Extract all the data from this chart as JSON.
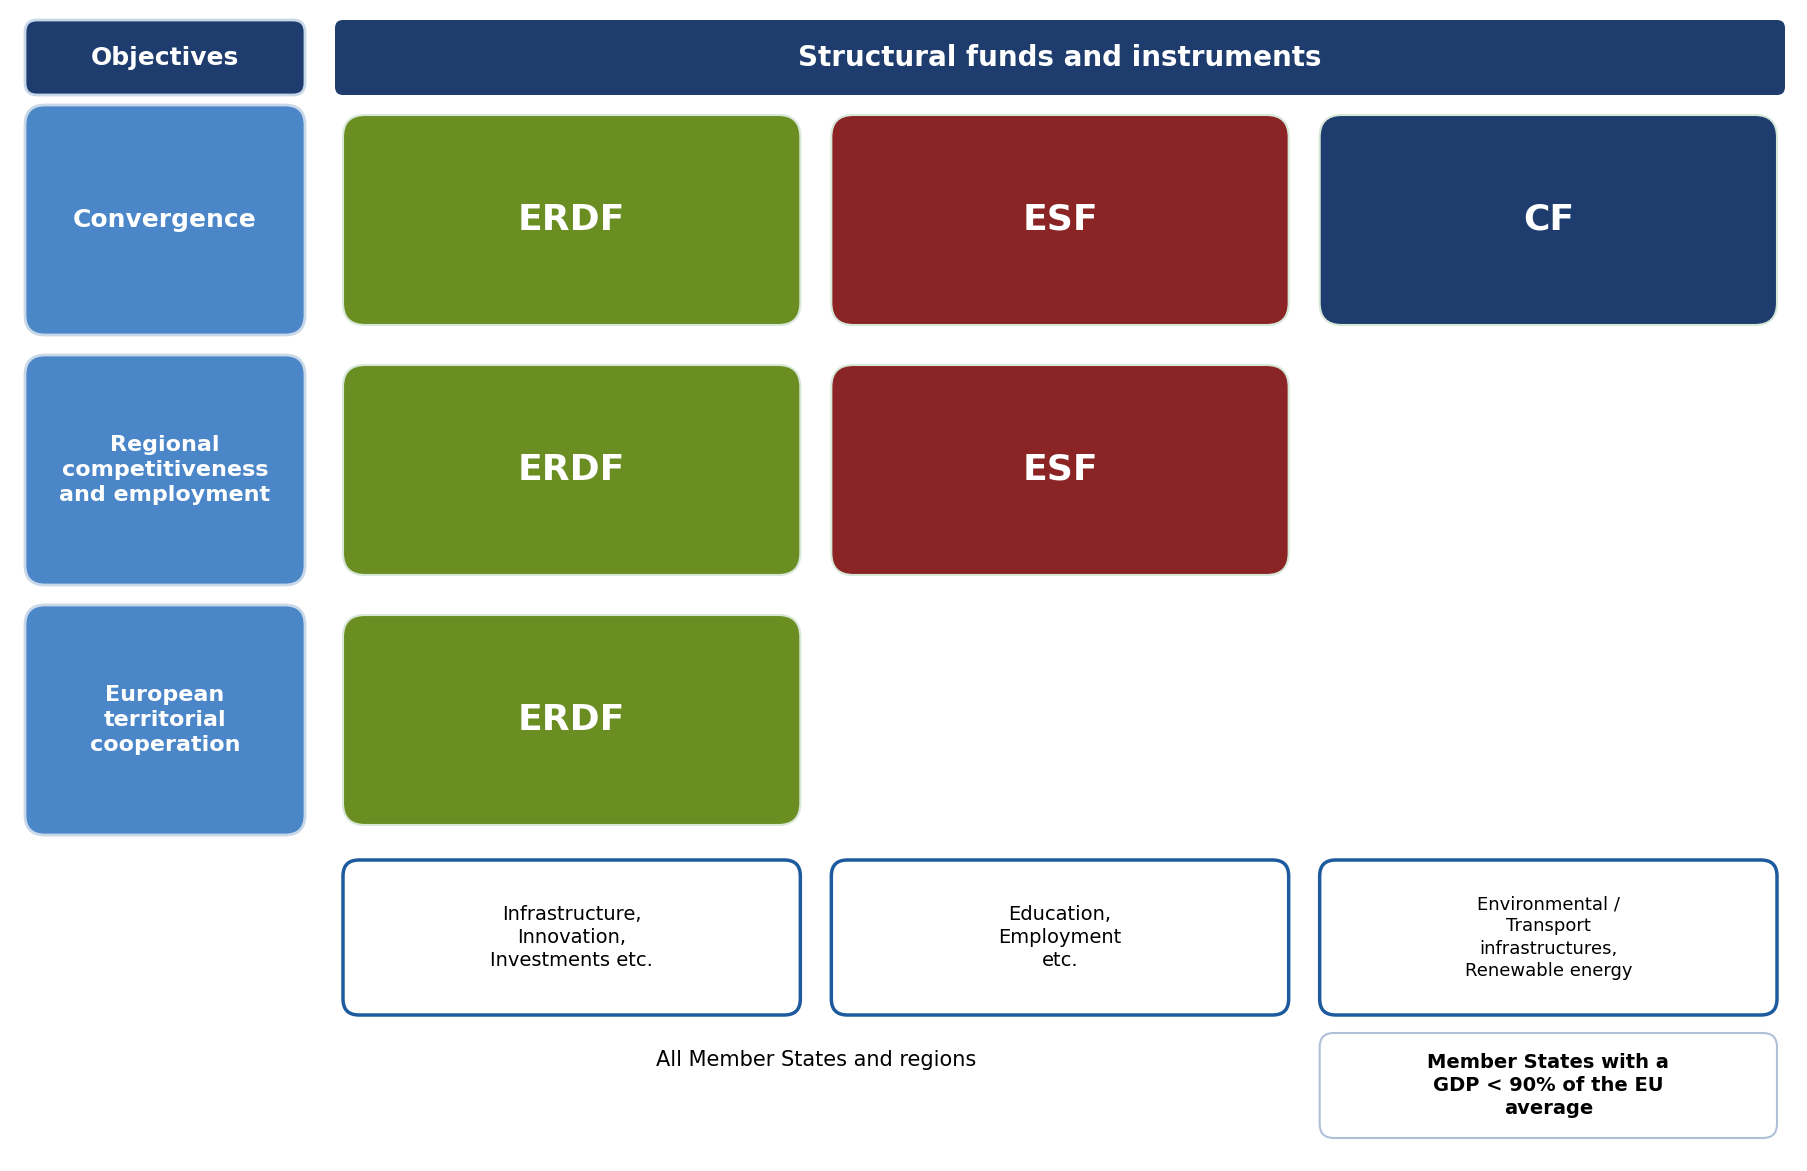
{
  "bg_color": "#ffffff",
  "header_dark_blue": "#1e3d6e",
  "cell_blue": "#4a86c8",
  "cell_green": "#6b8e23",
  "cell_red": "#8b2525",
  "cell_dark_blue": "#1e3d6e",
  "border_blue": "#1e5a9e",
  "border_light": "#b0c8e0",
  "objectives_header": "Objectives",
  "funds_header": "Structural funds and instruments",
  "obj_texts": [
    "Convergence",
    "Regional\ncompetitiveness\nand employment",
    "European\nterritorial\ncooperation"
  ],
  "fund_layout": [
    [
      "ERDF",
      "ESF",
      "CF"
    ],
    [
      "ERDF",
      "ESF"
    ],
    [
      "ERDF"
    ]
  ],
  "fund_colors": {
    "ERDF": "#6b8e23",
    "ESF": "#8b2525",
    "CF": "#1e3d6e"
  },
  "info_texts": [
    "Infrastructure,\nInnovation,\nInvestments etc.",
    "Education,\nEmployment\netc.",
    "Environmental /\nTransport\ninfrastructures,\nRenewable energy"
  ],
  "all_members_text": "All Member States and regions",
  "member_states_text": "Member States with a\nGDP < 90% of the EU\naverage"
}
